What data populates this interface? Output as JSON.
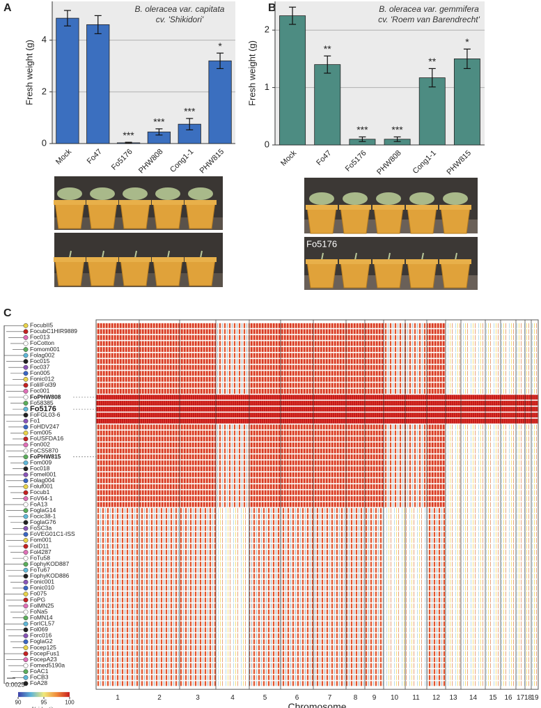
{
  "panel_labels": [
    "A",
    "B",
    "C"
  ],
  "chart_data": [
    {
      "type": "bar",
      "title": "B. oleracea var. capitata",
      "subtitle": "cv. 'Shikidori'",
      "ylabel": "Fresh weight (g)",
      "categories": [
        "Mock",
        "Fo47",
        "Fo5176",
        "PHW808",
        "Cong1-1",
        "PHW815"
      ],
      "values": [
        4.85,
        4.6,
        0.03,
        0.45,
        0.75,
        3.2
      ],
      "errors": [
        0.3,
        0.35,
        0.02,
        0.12,
        0.22,
        0.3
      ],
      "annotations": [
        null,
        null,
        "***",
        "***",
        "***",
        "*"
      ],
      "color": "#3b6fbf",
      "ylim": [
        0,
        5.5
      ],
      "yticks": [
        0,
        2,
        4
      ],
      "grid": true
    },
    {
      "type": "bar",
      "title": "B. oleracea var. gemmifera",
      "subtitle": "cv. 'Roem van Barendrecht'",
      "ylabel": "Fresh weight (g)",
      "categories": [
        "Mock",
        "Fo47",
        "Fo5176",
        "PHW808",
        "Cong1-1",
        "PHW815"
      ],
      "values": [
        2.25,
        1.4,
        0.1,
        0.1,
        1.17,
        1.5
      ],
      "errors": [
        0.15,
        0.15,
        0.04,
        0.04,
        0.16,
        0.17
      ],
      "annotations": [
        null,
        "**",
        "***",
        "***",
        "**",
        "*"
      ],
      "color": "#4d8c82",
      "ylim": [
        0,
        2.5
      ],
      "yticks": [
        0,
        1,
        2
      ],
      "grid": true
    }
  ],
  "photo_label": "Fo5176",
  "heatmap": {
    "strains": [
      "FocubII5",
      "FocubC1HIR9889",
      "Foc013",
      "FoCotton",
      "Fomom001",
      "Folag002",
      "Foc015",
      "Foc037",
      "Fon005",
      "Fonic012",
      "FoliIFol39",
      "Foc001",
      "FoPHW808",
      "Fo58385",
      "Fo5176",
      "FoFGL03-6",
      "Fo1",
      "FoHDV247",
      "Fom005",
      "FoUSFDA16",
      "Fon002",
      "FoCS5870",
      "FoPHW815",
      "Fom009",
      "Foc018",
      "Fomel001",
      "Folag004",
      "Foluf001",
      "Focub1",
      "FoV64-1",
      "FoA13",
      "FoglaG14",
      "Focic38-1",
      "FoglaG76",
      "FoSC3a",
      "FoVEG01C1-ISS",
      "Fom001",
      "FoID11",
      "Fol4287",
      "FoTu58",
      "FophyKOD887",
      "FoTu67",
      "FophyKOD886",
      "Fonic001",
      "Fonic010",
      "Fo075",
      "FoPG",
      "FolMN25",
      "FoNa5",
      "FoMN14",
      "ForICL57",
      "Fol069",
      "Forc016",
      "FoglaG2",
      "Focep125",
      "FocepFus1",
      "FocepA23",
      "Fomed5190a",
      "FoAC1",
      "FoCB3",
      "FoA28"
    ],
    "chromosomes": [
      1,
      2,
      3,
      4,
      5,
      6,
      7,
      8,
      9,
      10,
      11,
      12,
      13,
      14,
      15,
      16,
      17,
      18,
      19
    ],
    "xlabel": "Chromosome",
    "scale_bar": "0.0025",
    "colorbar": {
      "label": "% identity",
      "range": [
        90,
        100
      ],
      "ticks": [
        90,
        95,
        100
      ]
    }
  }
}
